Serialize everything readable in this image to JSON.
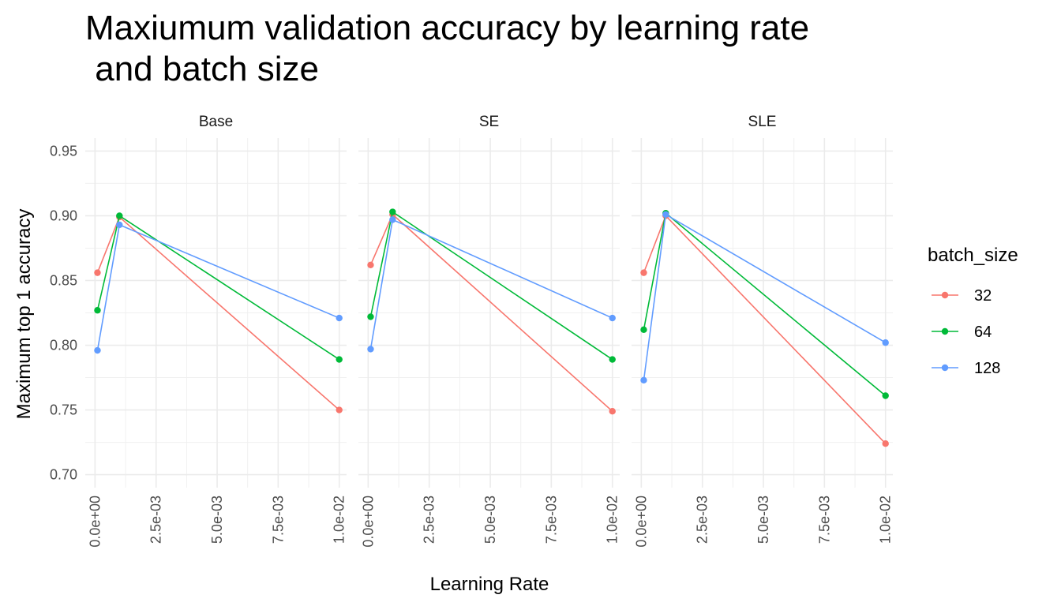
{
  "chart_data": {
    "type": "line",
    "title_lines": [
      "Maxiumum validation accuracy by learning rate",
      " and batch size"
    ],
    "xlabel": "Learning Rate",
    "ylabel": "Maximum top 1 accuracy",
    "xlim": [
      -0.0004,
      0.0103
    ],
    "ylim": [
      0.69,
      0.96
    ],
    "x_ticks": [
      0,
      0.0025,
      0.005,
      0.0075,
      0.01
    ],
    "x_tick_labels": [
      "0.0e+00",
      "2.5e-03",
      "5.0e-03",
      "7.5e-03",
      "1.0e-02"
    ],
    "y_ticks": [
      0.7,
      0.75,
      0.8,
      0.85,
      0.9,
      0.95
    ],
    "y_tick_labels": [
      "0.70",
      "0.75",
      "0.80",
      "0.85",
      "0.90",
      "0.95"
    ],
    "grid": true,
    "legend": {
      "title": "batch_size",
      "position": "right"
    },
    "colors": {
      "32": "#F8766D",
      "64": "#00BA38",
      "128": "#619CFF"
    },
    "panels": [
      {
        "name": "Base",
        "series": [
          {
            "name": "32",
            "x": [
              0.0001,
              0.001,
              0.01
            ],
            "y": [
              0.856,
              0.899,
              0.75
            ]
          },
          {
            "name": "64",
            "x": [
              0.0001,
              0.001,
              0.01
            ],
            "y": [
              0.827,
              0.9,
              0.789
            ]
          },
          {
            "name": "128",
            "x": [
              0.0001,
              0.001,
              0.01
            ],
            "y": [
              0.796,
              0.893,
              0.821
            ]
          }
        ]
      },
      {
        "name": "SE",
        "series": [
          {
            "name": "32",
            "x": [
              0.0001,
              0.001,
              0.01
            ],
            "y": [
              0.862,
              0.901,
              0.749
            ]
          },
          {
            "name": "64",
            "x": [
              0.0001,
              0.001,
              0.01
            ],
            "y": [
              0.822,
              0.903,
              0.789
            ]
          },
          {
            "name": "128",
            "x": [
              0.0001,
              0.001,
              0.01
            ],
            "y": [
              0.797,
              0.897,
              0.821
            ]
          }
        ]
      },
      {
        "name": "SLE",
        "series": [
          {
            "name": "32",
            "x": [
              0.0001,
              0.001,
              0.01
            ],
            "y": [
              0.856,
              0.9,
              0.724
            ]
          },
          {
            "name": "64",
            "x": [
              0.0001,
              0.001,
              0.01
            ],
            "y": [
              0.812,
              0.902,
              0.761
            ]
          },
          {
            "name": "128",
            "x": [
              0.0001,
              0.001,
              0.01
            ],
            "y": [
              0.773,
              0.901,
              0.802
            ]
          }
        ]
      }
    ]
  }
}
